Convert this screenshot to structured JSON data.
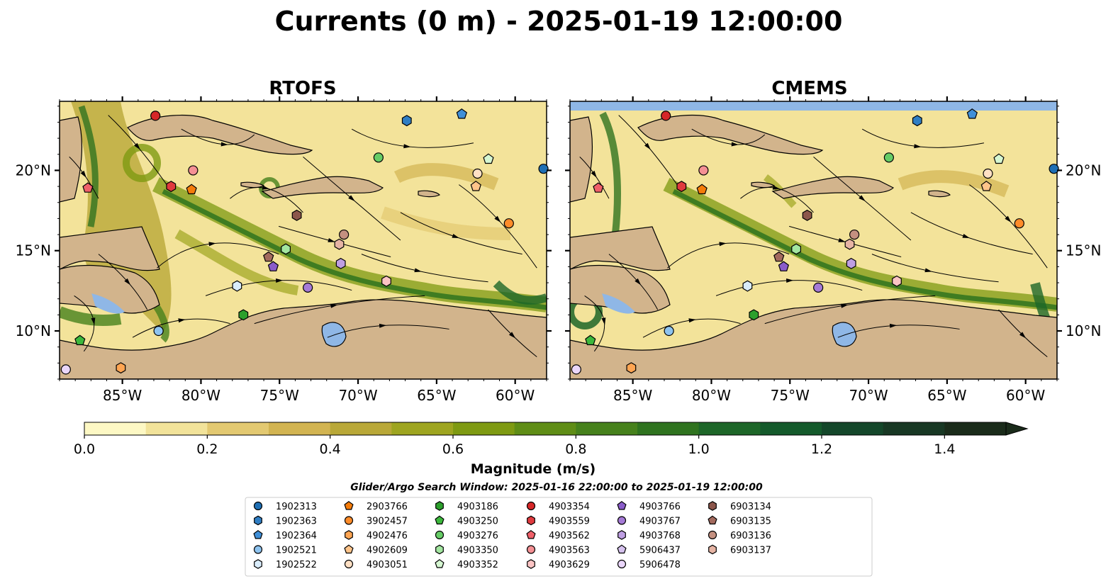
{
  "title": "Currents (0 m) - 2025-01-19 12:00:00",
  "maps": [
    {
      "title": "RTOFS"
    },
    {
      "title": "CMEMS"
    }
  ],
  "lon_ticks": [
    "85°W",
    "80°W",
    "75°W",
    "70°W",
    "65°W",
    "60°W"
  ],
  "lat_ticks": [
    "20°N",
    "15°N",
    "10°N"
  ],
  "colorbar": {
    "label": "Magnitude (m/s)",
    "ticks": [
      "0.0",
      "0.2",
      "0.4",
      "0.6",
      "0.8",
      "1.0",
      "1.2",
      "1.4"
    ],
    "min": 0.0,
    "max": 1.5,
    "step": 0.1,
    "colors": [
      "#fdf8c4",
      "#f2e39a",
      "#e3c971",
      "#d2b451",
      "#b9a838",
      "#9ea520",
      "#7e9a12",
      "#5f8d16",
      "#46811c",
      "#2f731f",
      "#1d6628",
      "#145a2b",
      "#14472a",
      "#183824",
      "#1a2b1a"
    ]
  },
  "search_window": "Glider/Argo Search Window: 2025-01-16 22:00:00 to 2025-01-19 12:00:00",
  "platforms": [
    {
      "id": "1902313",
      "shape": "circle",
      "color": "#1f6fb4"
    },
    {
      "id": "1902363",
      "shape": "hexagon",
      "color": "#2f7ec4"
    },
    {
      "id": "1902364",
      "shape": "pentagon",
      "color": "#3f8fd8"
    },
    {
      "id": "1902521",
      "shape": "circle",
      "color": "#8ec3ef"
    },
    {
      "id": "1902522",
      "shape": "hexagon",
      "color": "#d9ecfb"
    },
    {
      "id": "2903766",
      "shape": "pentagon",
      "color": "#f57c0a"
    },
    {
      "id": "3902457",
      "shape": "circle",
      "color": "#ff8c2a"
    },
    {
      "id": "4902476",
      "shape": "hexagon",
      "color": "#ffa552"
    },
    {
      "id": "4902609",
      "shape": "pentagon",
      "color": "#ffc48a"
    },
    {
      "id": "4903051",
      "shape": "circle",
      "color": "#ffe0c4"
    },
    {
      "id": "4903186",
      "shape": "hexagon",
      "color": "#2ca02c"
    },
    {
      "id": "4903250",
      "shape": "pentagon",
      "color": "#3cb83c"
    },
    {
      "id": "4903276",
      "shape": "circle",
      "color": "#66cc66"
    },
    {
      "id": "4903350",
      "shape": "hexagon",
      "color": "#a3e6a0"
    },
    {
      "id": "4903352",
      "shape": "pentagon",
      "color": "#d6f7d2"
    },
    {
      "id": "4903354",
      "shape": "circle",
      "color": "#d62728"
    },
    {
      "id": "4903559",
      "shape": "hexagon",
      "color": "#e03a3e"
    },
    {
      "id": "4903562",
      "shape": "pentagon",
      "color": "#f0606a"
    },
    {
      "id": "4903563",
      "shape": "circle",
      "color": "#f49094"
    },
    {
      "id": "4903629",
      "shape": "hexagon",
      "color": "#fbc4c4"
    },
    {
      "id": "4903766",
      "shape": "pentagon",
      "color": "#8a5cc9"
    },
    {
      "id": "4903767",
      "shape": "circle",
      "color": "#a57ad6"
    },
    {
      "id": "4903768",
      "shape": "hexagon",
      "color": "#be9ee2"
    },
    {
      "id": "5906437",
      "shape": "pentagon",
      "color": "#d6c2ee"
    },
    {
      "id": "5906478",
      "shape": "circle",
      "color": "#ead6fa"
    },
    {
      "id": "6903134",
      "shape": "hexagon",
      "color": "#8c564b"
    },
    {
      "id": "6903135",
      "shape": "pentagon",
      "color": "#a36a5e"
    },
    {
      "id": "6903136",
      "shape": "circle",
      "color": "#c49080"
    },
    {
      "id": "6903137",
      "shape": "hexagon",
      "color": "#e6b4a4"
    }
  ],
  "markers": [
    {
      "id": "4903354",
      "lon": -82.9,
      "lat": 23.4
    },
    {
      "id": "1902363",
      "lon": -66.9,
      "lat": 23.1
    },
    {
      "id": "1902364",
      "lon": -63.4,
      "lat": 23.5
    },
    {
      "id": "4903276",
      "lon": -68.7,
      "lat": 20.8
    },
    {
      "id": "4903352",
      "lon": -61.7,
      "lat": 20.7
    },
    {
      "id": "1902313",
      "lon": -58.2,
      "lat": 20.1
    },
    {
      "id": "4903563",
      "lon": -80.5,
      "lat": 20.0
    },
    {
      "id": "4903051",
      "lon": -62.4,
      "lat": 19.8
    },
    {
      "id": "4903559",
      "lon": -81.9,
      "lat": 19.0
    },
    {
      "id": "4903562",
      "lon": -87.2,
      "lat": 18.9
    },
    {
      "id": "2903766",
      "lon": -80.6,
      "lat": 18.8
    },
    {
      "id": "4902609",
      "lon": -62.5,
      "lat": 19.0
    },
    {
      "id": "6903134",
      "lon": -73.9,
      "lat": 17.2
    },
    {
      "id": "6903136",
      "lon": -70.9,
      "lat": 16.0
    },
    {
      "id": "3902457",
      "lon": -60.4,
      "lat": 16.7
    },
    {
      "id": "6903137",
      "lon": -71.2,
      "lat": 15.4
    },
    {
      "id": "4903350",
      "lon": -74.6,
      "lat": 15.1
    },
    {
      "id": "6903135",
      "lon": -75.7,
      "lat": 14.6
    },
    {
      "id": "4903766",
      "lon": -75.4,
      "lat": 14.0
    },
    {
      "id": "4903768",
      "lon": -71.1,
      "lat": 14.2
    },
    {
      "id": "4903629",
      "lon": -68.2,
      "lat": 13.1
    },
    {
      "id": "1902522",
      "lon": -77.7,
      "lat": 12.8
    },
    {
      "id": "4903767",
      "lon": -73.2,
      "lat": 12.7
    },
    {
      "id": "4903186",
      "lon": -77.3,
      "lat": 11.0
    },
    {
      "id": "1902521",
      "lon": -82.7,
      "lat": 10.0
    },
    {
      "id": "4903250",
      "lon": -87.7,
      "lat": 9.4
    },
    {
      "id": "4902476",
      "lon": -85.1,
      "lat": 7.7
    },
    {
      "id": "5906478",
      "lon": -88.6,
      "lat": 7.6
    }
  ]
}
